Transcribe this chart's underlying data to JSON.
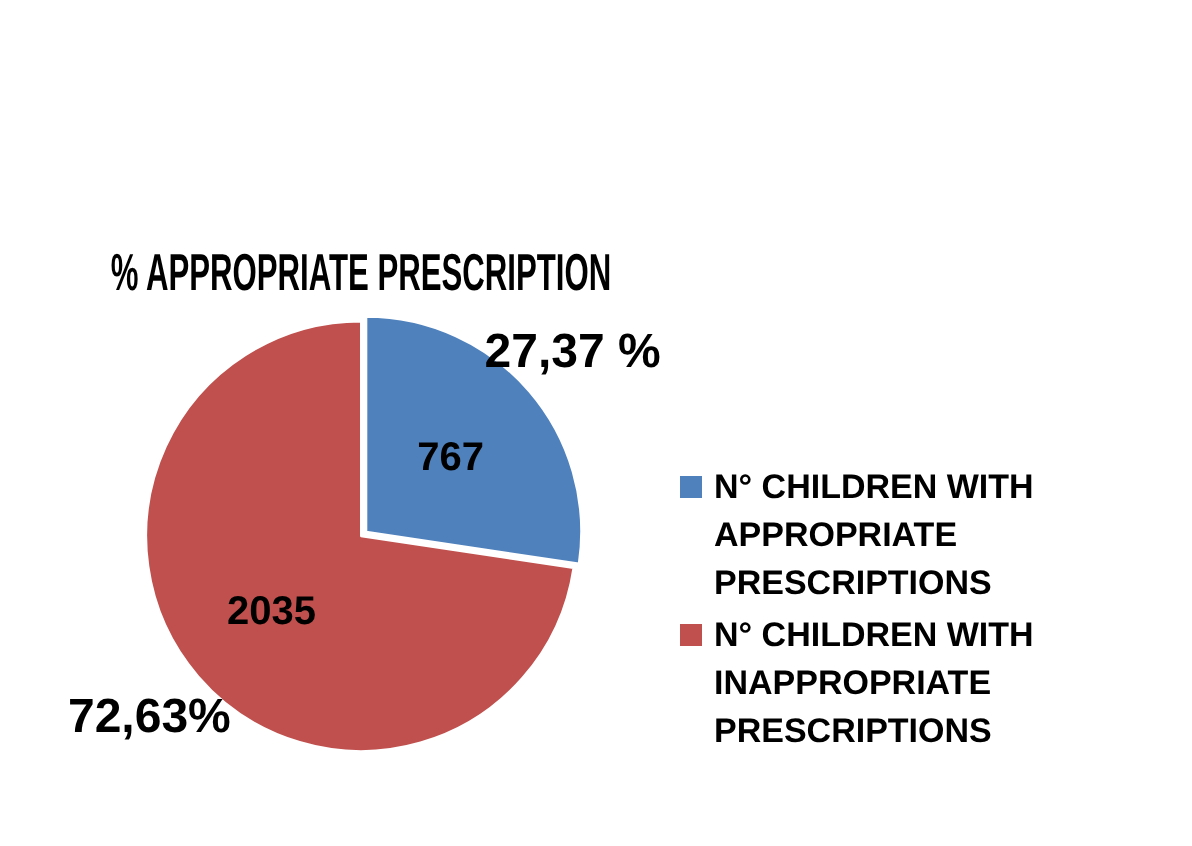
{
  "chart_data": {
    "type": "pie",
    "title": "% APPROPRIATE PRESCRIPTION",
    "categories": [
      "N° CHILDREN WITH APPROPRIATE PRESCRIPTIONS",
      "N° CHILDREN WITH INAPPROPRIATE PRESCRIPTIONS"
    ],
    "values": [
      767,
      2035
    ],
    "colors": [
      "#4f81bd",
      "#c0504d"
    ],
    "data_labels": true,
    "annotations": [
      "27,37 %",
      "72,63%"
    ],
    "legend": "right"
  }
}
